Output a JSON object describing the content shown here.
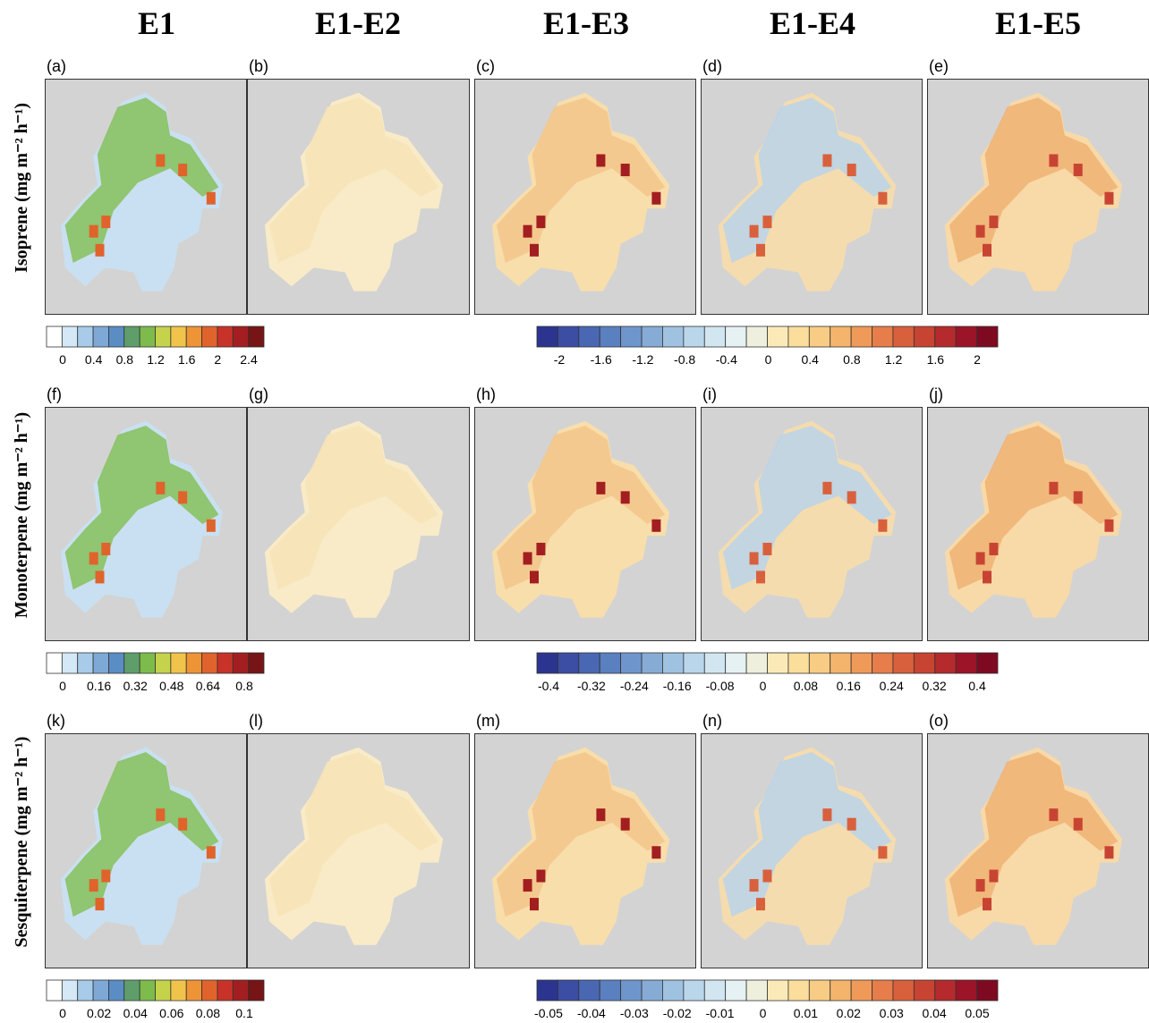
{
  "columns": [
    "E1",
    "E1-E2",
    "E1-E3",
    "E1-E4",
    "E1-E5"
  ],
  "rows": [
    {
      "label": "Isoprene (mg m⁻² h⁻¹)",
      "panels": [
        "(a)",
        "(b)",
        "(c)",
        "(d)",
        "(e)"
      ],
      "colorbar_left": {
        "ticks": [
          0,
          0.4,
          0.8,
          1.2,
          1.6,
          2,
          2.4
        ]
      },
      "colorbar_right": {
        "ticks": [
          -2,
          -1.6,
          -1.2,
          -0.8,
          -0.4,
          0,
          0.4,
          0.8,
          1.2,
          1.6,
          2
        ]
      }
    },
    {
      "label": "Monoterpene (mg m⁻² h⁻¹)",
      "panels": [
        "(f)",
        "(g)",
        "(h)",
        "(i)",
        "(j)"
      ],
      "colorbar_left": {
        "ticks": [
          0,
          0.16,
          0.32,
          0.48,
          0.64,
          0.8
        ]
      },
      "colorbar_right": {
        "ticks": [
          -0.4,
          -0.32,
          -0.24,
          -0.16,
          -0.08,
          0,
          0.08,
          0.16,
          0.24,
          0.32,
          0.4
        ]
      }
    },
    {
      "label": "Sesquiterpene (mg m⁻² h⁻¹)",
      "panels": [
        "(k)",
        "(l)",
        "(m)",
        "(n)",
        "(o)"
      ],
      "colorbar_left": {
        "ticks": [
          0,
          0.02,
          0.04,
          0.06,
          0.08,
          0.1
        ]
      },
      "colorbar_right": {
        "ticks": [
          -0.05,
          -0.04,
          -0.03,
          -0.02,
          -0.01,
          0,
          0.01,
          0.02,
          0.03,
          0.04,
          0.05
        ]
      }
    }
  ],
  "colorbar_left_colors": [
    "#ffffff",
    "#d4e8f7",
    "#a8cbea",
    "#7ea8d6",
    "#5a8dc4",
    "#5f9e6a",
    "#7dbb4c",
    "#c4d34b",
    "#f0c44a",
    "#ee9437",
    "#e0632c",
    "#c83228",
    "#a31e20",
    "#761416"
  ],
  "colorbar_right_colors": [
    "#2b3590",
    "#3b4ea3",
    "#4a67b4",
    "#5b80c0",
    "#6f96cc",
    "#86acd6",
    "#a0c2e1",
    "#bad6ea",
    "#d2e6f1",
    "#e6f1f3",
    "#eeefdc",
    "#fbeab8",
    "#fbdd9c",
    "#f8cc84",
    "#f4b46c",
    "#ef9a58",
    "#e67d4a",
    "#d9603c",
    "#c84432",
    "#b52a2c",
    "#9c1428",
    "#7e0a22"
  ]
}
